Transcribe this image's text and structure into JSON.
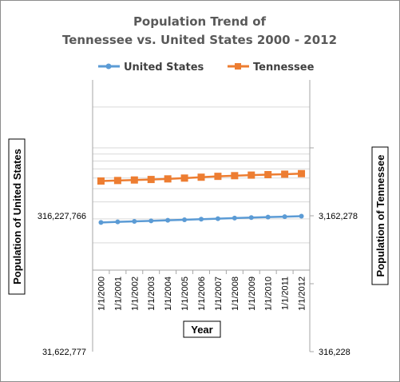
{
  "chart_data": {
    "type": "line",
    "title_lines": [
      "Population Trend of",
      "Tennessee vs. United States 2000 - 2012"
    ],
    "xlabel": "Year",
    "ylabel_left": "Population of United States",
    "ylabel_right": "Population of Tennessee",
    "y_scale": "log",
    "legend_position": "top",
    "grid": true,
    "categories": [
      "1/1/2000",
      "1/1/2001",
      "1/1/2002",
      "1/1/2003",
      "1/1/2004",
      "1/1/2005",
      "1/1/2006",
      "1/1/2007",
      "1/1/2008",
      "1/1/2009",
      "1/1/2010",
      "1/1/2011",
      "1/1/2012"
    ],
    "left_axis": {
      "ylim": [
        31622777,
        3162277660
      ],
      "tick_labels": [
        "31,622,777",
        "316,227,766"
      ],
      "tick_values": [
        31622777,
        316227766
      ]
    },
    "right_axis": {
      "ylim": [
        316228,
        31622777
      ],
      "tick_labels": [
        "316,228",
        "3,162,278"
      ],
      "tick_values": [
        316228,
        3162278
      ]
    },
    "series": [
      {
        "name": "United States",
        "axis": "left",
        "color": "#5b9bd5",
        "marker": "circle",
        "values": [
          282200000,
          285000000,
          287600000,
          290100000,
          292800000,
          295500000,
          298400000,
          301200000,
          304100000,
          306800000,
          309300000,
          311600000,
          313900000
        ]
      },
      {
        "name": "Tennessee",
        "axis": "right",
        "color": "#ed7d31",
        "marker": "square",
        "values": [
          5700000,
          5750000,
          5800000,
          5850000,
          5910000,
          5990000,
          6080000,
          6170000,
          6240000,
          6300000,
          6350000,
          6400000,
          6460000
        ]
      }
    ]
  }
}
